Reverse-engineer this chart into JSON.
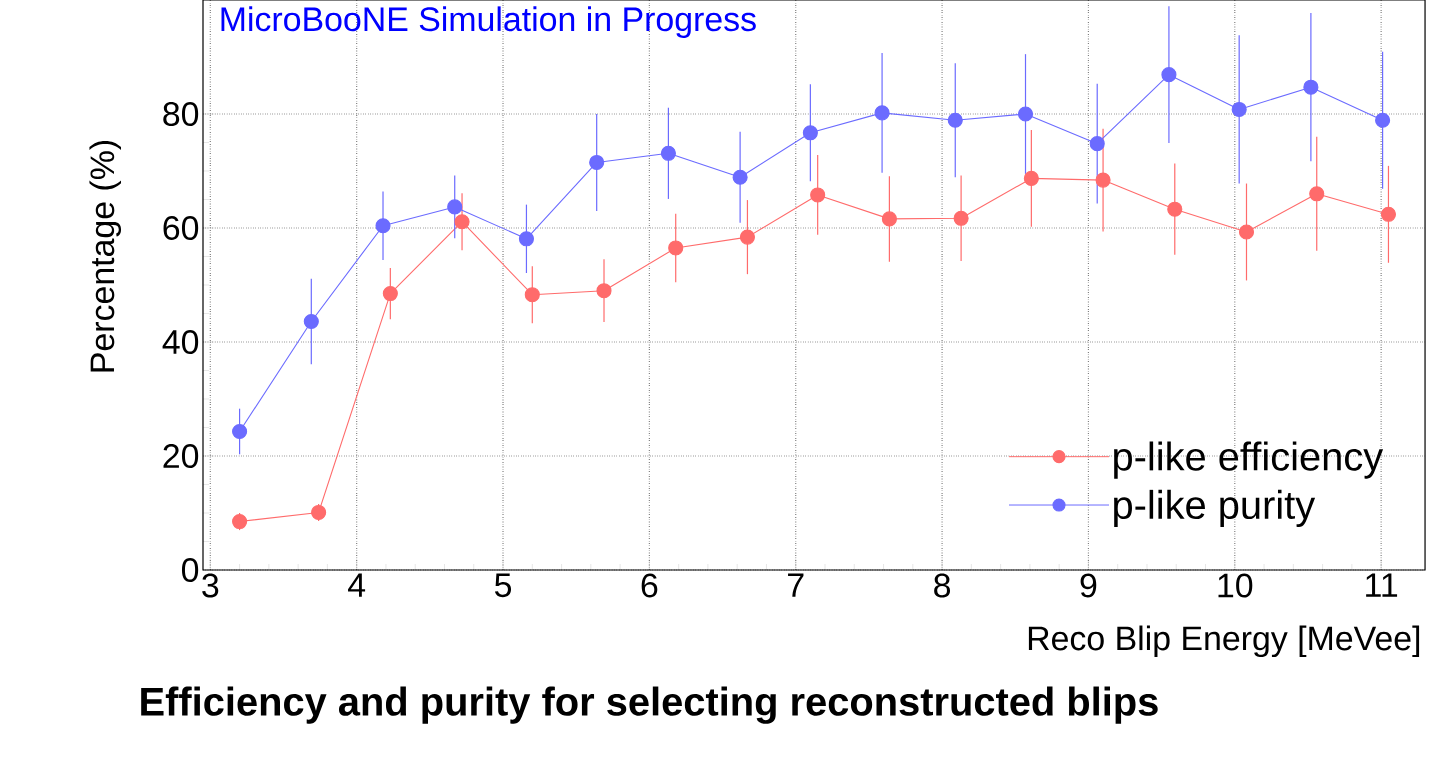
{
  "chart_data": {
    "type": "line",
    "xlabel": "Reco Blip Energy [MeVee]",
    "ylabel": "Percentage (%)",
    "annotations": [
      "MicroBooNE Simulation in Progress",
      "Efficiency and purity for selecting reconstructed blips"
    ],
    "xlim": [
      2.95,
      11.3
    ],
    "ylim": [
      0,
      100
    ],
    "xticks": [
      3,
      4,
      5,
      6,
      7,
      8,
      9,
      10,
      11
    ],
    "yticks": [
      0,
      20,
      40,
      60,
      80
    ],
    "grid": true,
    "legend": "right",
    "marker": "circle",
    "line_style": "solid",
    "series": [
      {
        "name": "p-like efficiency",
        "color": "#ff6b6b",
        "x": [
          3.2,
          3.74,
          4.23,
          4.72,
          5.2,
          5.69,
          6.18,
          6.67,
          7.15,
          7.64,
          8.13,
          8.61,
          9.1,
          9.59,
          10.08,
          10.56,
          11.05
        ],
        "values": [
          8.5,
          10.1,
          48.5,
          61.1,
          48.3,
          49.0,
          56.5,
          58.4,
          65.8,
          61.6,
          61.7,
          68.7,
          68.4,
          63.3,
          59.3,
          66.0,
          62.4
        ],
        "errors": [
          1.5,
          1.5,
          4.5,
          5,
          5,
          5.5,
          6,
          6.5,
          7,
          7.5,
          7.5,
          8.5,
          9,
          8,
          8.5,
          10,
          8.5
        ]
      },
      {
        "name": "p-like purity",
        "color": "#6b6bff",
        "x": [
          3.2,
          3.69,
          4.18,
          4.67,
          5.16,
          5.64,
          6.13,
          6.62,
          7.1,
          7.59,
          8.09,
          8.57,
          9.06,
          9.55,
          10.03,
          10.52,
          11.01
        ],
        "values": [
          24.3,
          43.6,
          60.4,
          63.7,
          58.1,
          71.5,
          73.1,
          68.9,
          76.7,
          80.2,
          78.9,
          80.0,
          74.8,
          86.9,
          80.8,
          84.7,
          78.9
        ],
        "errors": [
          4,
          7.5,
          6,
          5.5,
          6,
          8.5,
          8,
          8,
          8.5,
          10.5,
          10,
          10.5,
          10.5,
          12,
          13,
          13,
          12
        ]
      }
    ]
  }
}
